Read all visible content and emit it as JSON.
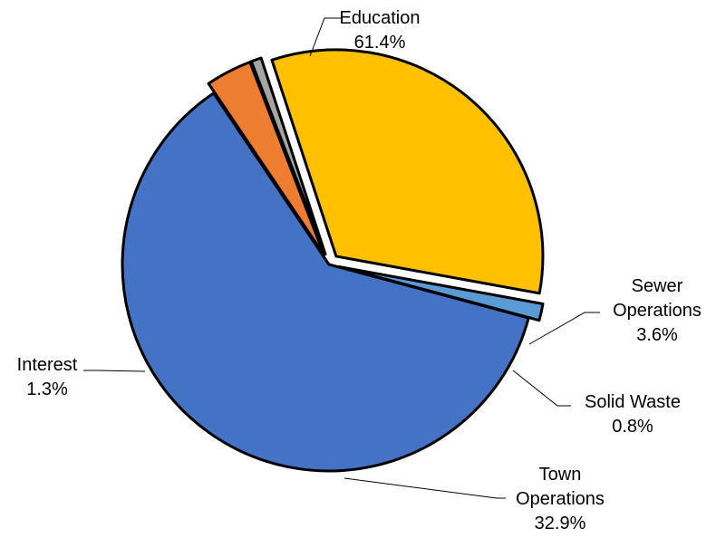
{
  "chart_data": {
    "type": "pie",
    "title": "",
    "slices": [
      {
        "name": "Education",
        "pct_label": "61.4%",
        "value": 61.4,
        "color": "#4472C4",
        "exploded": false,
        "label_lines": [
          "Education",
          "61.4%"
        ]
      },
      {
        "name": "Sewer Operations",
        "pct_label": "3.6%",
        "value": 3.6,
        "color": "#ED7D31",
        "exploded": true,
        "label_lines": [
          "Sewer",
          "Operations",
          "3.6%"
        ]
      },
      {
        "name": "Solid Waste",
        "pct_label": "0.8%",
        "value": 0.8,
        "color": "#A5A5A5",
        "exploded": true,
        "label_lines": [
          "Solid Waste",
          "0.8%"
        ]
      },
      {
        "name": "Town Operations",
        "pct_label": "32.9%",
        "value": 32.9,
        "color": "#FFC000",
        "exploded": true,
        "label_lines": [
          "Town",
          "Operations",
          "32.9%"
        ]
      },
      {
        "name": "Interest",
        "pct_label": "1.3%",
        "value": 1.3,
        "color": "#5B9BD5",
        "exploded": true,
        "label_lines": [
          "Interest",
          "1.3%"
        ]
      }
    ],
    "legend": "none",
    "labels": "outside-with-leader-lines"
  }
}
